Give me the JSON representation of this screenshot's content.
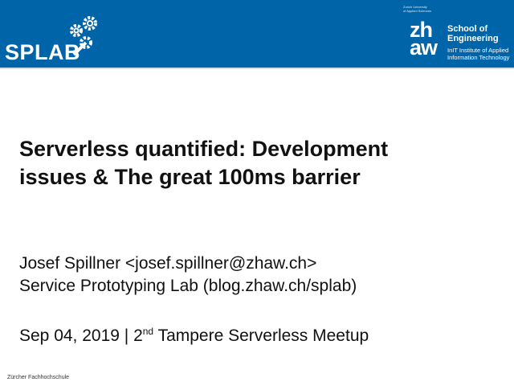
{
  "header": {
    "logo_left": "SPLAB",
    "university_small": [
      "Zurich University",
      "of Applied Sciences"
    ],
    "logo_right_mark": [
      "zh",
      "aw"
    ],
    "school": [
      "School of",
      "Engineering"
    ],
    "institute": [
      "InIT Institute of Applied",
      "Information Technology"
    ],
    "color": "#0064a8"
  },
  "slide": {
    "title_lines": [
      "Serverless quantified: Development",
      "issues & The great 100ms barrier"
    ],
    "author": "Josef Spillner <josef.spillner@zhaw.ch>",
    "affiliation": "Service Prototyping Lab (blog.zhaw.ch/splab)",
    "date": "Sep 04, 2019 | 2",
    "date_sup": "nd",
    "event": " Tampere Serverless Meetup"
  },
  "footer": {
    "text": "Zürcher Fachhochschule"
  }
}
